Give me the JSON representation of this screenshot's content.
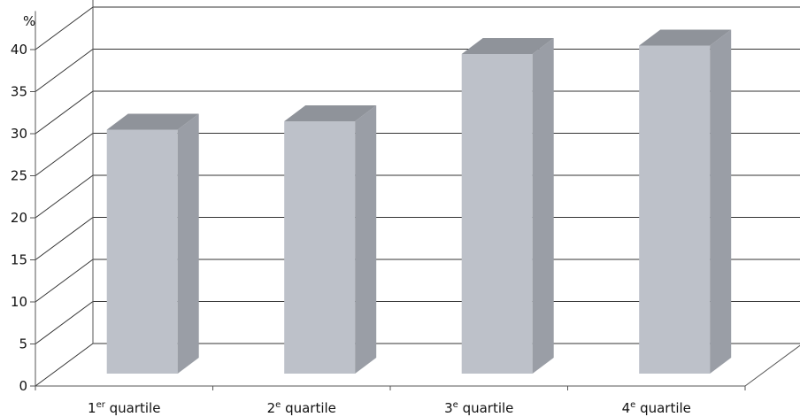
{
  "chart_data": {
    "type": "bar",
    "y_unit": "%",
    "categories": [
      {
        "base": "1",
        "sup": "er",
        "rest": " quartile"
      },
      {
        "base": "2",
        "sup": "e",
        "rest": " quartile"
      },
      {
        "base": "3",
        "sup": "e",
        "rest": " quartile"
      },
      {
        "base": "4",
        "sup": "e",
        "rest": " quartile"
      }
    ],
    "values": [
      29,
      30,
      38,
      39
    ],
    "ylim": [
      0,
      45
    ],
    "y_ticks": [
      "0",
      "5",
      "10",
      "15",
      "20",
      "25",
      "30",
      "35",
      "40"
    ],
    "grid": true,
    "colors": {
      "bar_front": "#bdc1c9",
      "bar_side": "#9a9ea6",
      "bar_top": "#8f939a",
      "axis": "#555555",
      "grid": "#333333"
    }
  }
}
